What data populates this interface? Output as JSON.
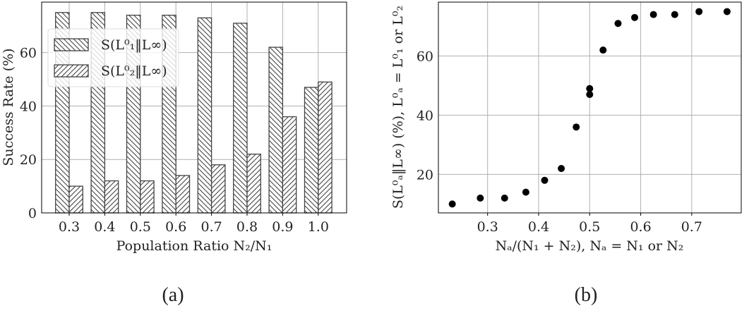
{
  "chart_data": [
    {
      "type": "bar",
      "caption": "(a)",
      "categories": [
        "0.3",
        "0.4",
        "0.5",
        "0.6",
        "0.7",
        "0.8",
        "0.9",
        "1.0"
      ],
      "series": [
        {
          "name": "S(L⁰₁‖L∞)",
          "values": [
            75,
            75,
            74,
            74,
            73,
            71,
            62,
            47
          ],
          "hatch": "backslash"
        },
        {
          "name": "S(L⁰₂‖L∞)",
          "values": [
            10,
            12,
            12,
            14,
            18,
            22,
            36,
            49
          ],
          "hatch": "slash"
        }
      ],
      "xlabel": "Population Ratio N₂/N₁",
      "ylabel": "Success Rate (%)",
      "ylim": [
        0,
        78.9
      ],
      "yticks": [
        0,
        20,
        40,
        60
      ],
      "grid": true,
      "legend": "upper-left",
      "bar_color": "#ffffff",
      "edge_color": "#444444"
    },
    {
      "type": "scatter",
      "caption": "(b)",
      "x": [
        0.2308,
        0.2857,
        0.3333,
        0.375,
        0.4118,
        0.4444,
        0.4737,
        0.5,
        0.5,
        0.5263,
        0.5556,
        0.5882,
        0.625,
        0.6667,
        0.7143,
        0.7692
      ],
      "y": [
        10,
        12,
        12,
        14,
        18,
        22,
        36,
        47,
        49,
        62,
        71,
        73,
        74,
        74,
        75,
        75
      ],
      "xlabel": "Nₐ/(N₁ + N₂), Nₐ = N₁ or N₂",
      "ylabel": "S(L⁰ₐ‖L∞) (%), L⁰ₐ = L⁰₁ or L⁰₂",
      "xlim": [
        0.2036,
        0.797
      ],
      "ylim": [
        7,
        78.2
      ],
      "xticks": [
        "0.3",
        "0.4",
        "0.5",
        "0.6",
        "0.7"
      ],
      "yticks": [
        20,
        40,
        60
      ],
      "grid": true,
      "marker_color": "#000000"
    }
  ]
}
